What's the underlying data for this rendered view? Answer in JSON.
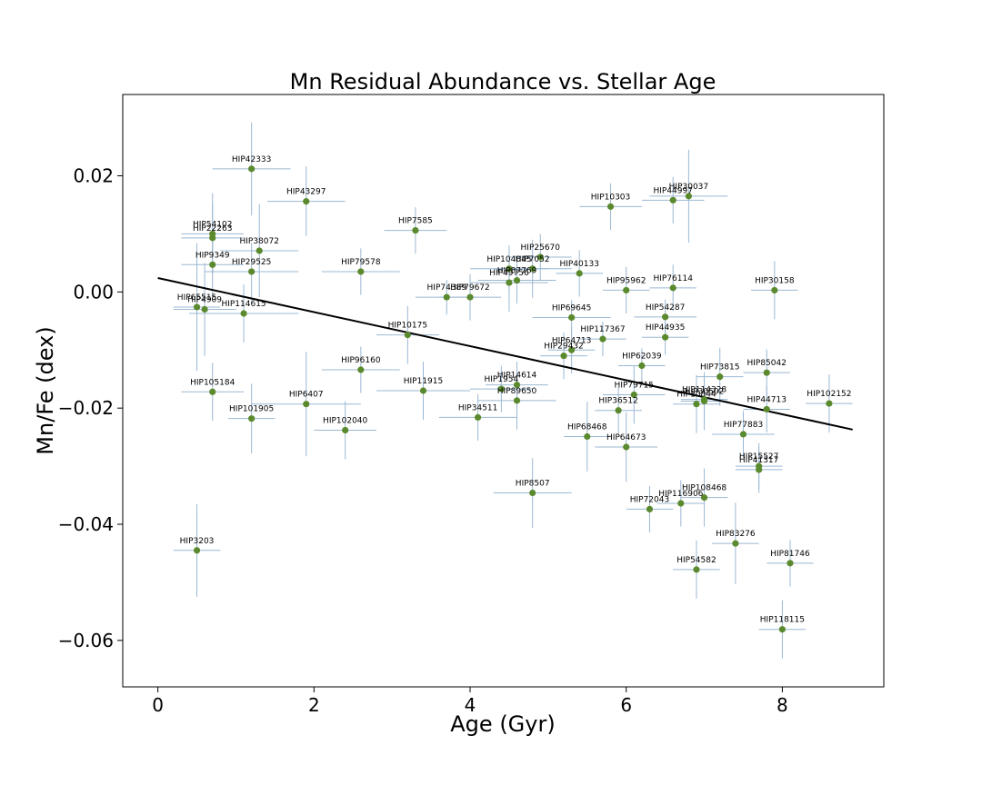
{
  "chart_data": {
    "type": "scatter",
    "title": "Mn Residual Abundance vs. Stellar Age",
    "xlabel": "Age (Gyr)",
    "ylabel": "Mn/Fe (dex)",
    "xlim": [
      -0.45,
      9.3
    ],
    "ylim": [
      -0.068,
      0.034
    ],
    "xticks": [
      0,
      2,
      4,
      6,
      8
    ],
    "yticks": [
      -0.06,
      -0.04,
      -0.02,
      0.0,
      0.02
    ],
    "ytick_labels": [
      "−0.06",
      "−0.04",
      "−0.02",
      "0.00",
      "0.02"
    ],
    "grid": false,
    "colors": {
      "point": "#5b8a2e",
      "errorbar": "#9bb8d3",
      "fit": "#000000"
    },
    "fit_line": {
      "x": [
        0.0,
        8.9
      ],
      "y": [
        0.0024,
        -0.0237
      ]
    },
    "points": [
      {
        "name": "HIP42333",
        "x": 1.2,
        "y": 0.0212,
        "xerr": 0.5,
        "yerr": 0.008
      },
      {
        "name": "HIP43297",
        "x": 1.9,
        "y": 0.0156,
        "xerr": 0.5,
        "yerr": 0.006
      },
      {
        "name": "HIP54102",
        "x": 0.7,
        "y": 0.01,
        "xerr": 0.4,
        "yerr": 0.007
      },
      {
        "name": "HIP22263",
        "x": 0.7,
        "y": 0.0093,
        "xerr": 0.4,
        "yerr": 0.006
      },
      {
        "name": "HIP38072",
        "x": 1.3,
        "y": 0.0071,
        "xerr": 0.5,
        "yerr": 0.008
      },
      {
        "name": "HIP7585",
        "x": 3.3,
        "y": 0.0106,
        "xerr": 0.4,
        "yerr": 0.004
      },
      {
        "name": "HIP9349",
        "x": 0.7,
        "y": 0.0047,
        "xerr": 0.4,
        "yerr": 0.006
      },
      {
        "name": "HIP29525",
        "x": 1.2,
        "y": 0.0035,
        "xerr": 0.6,
        "yerr": 0.005
      },
      {
        "name": "HIP79578",
        "x": 2.6,
        "y": 0.0035,
        "xerr": 0.5,
        "yerr": 0.004
      },
      {
        "name": "HIP25670",
        "x": 4.9,
        "y": 0.006,
        "xerr": 0.4,
        "yerr": 0.004
      },
      {
        "name": "HIP104045",
        "x": 4.5,
        "y": 0.004,
        "xerr": 0.5,
        "yerr": 0.004
      },
      {
        "name": "HIP7052",
        "x": 4.8,
        "y": 0.004,
        "xerr": 0.5,
        "yerr": 0.005
      },
      {
        "name": "HIP49756",
        "x": 4.5,
        "y": 0.0016,
        "xerr": 0.5,
        "yerr": 0.005
      },
      {
        "name": "HIP87769",
        "x": 4.6,
        "y": 0.002,
        "xerr": 0.5,
        "yerr": 0.004
      },
      {
        "name": "HIP40133",
        "x": 5.4,
        "y": 0.0032,
        "xerr": 0.3,
        "yerr": 0.004
      },
      {
        "name": "HIP74389",
        "x": 3.7,
        "y": -0.0009,
        "xerr": 0.4,
        "yerr": 0.003
      },
      {
        "name": "HIP79672",
        "x": 4.0,
        "y": -0.0009,
        "xerr": 0.4,
        "yerr": 0.004
      },
      {
        "name": "HIP10303",
        "x": 5.8,
        "y": 0.0147,
        "xerr": 0.4,
        "yerr": 0.004
      },
      {
        "name": "HIP44997",
        "x": 6.6,
        "y": 0.0158,
        "xerr": 0.4,
        "yerr": 0.004
      },
      {
        "name": "HIP30037",
        "x": 6.8,
        "y": 0.0165,
        "xerr": 0.5,
        "yerr": 0.008
      },
      {
        "name": "HIP95962",
        "x": 6.0,
        "y": 0.0003,
        "xerr": 0.3,
        "yerr": 0.004
      },
      {
        "name": "HIP76114",
        "x": 6.6,
        "y": 0.0007,
        "xerr": 0.3,
        "yerr": 0.004
      },
      {
        "name": "HIP30158",
        "x": 7.9,
        "y": 0.0003,
        "xerr": 0.3,
        "yerr": 0.005
      },
      {
        "name": "HIP65515",
        "x": 0.5,
        "y": -0.0026,
        "xerr": 0.3,
        "yerr": 0.011
      },
      {
        "name": "HIP4909",
        "x": 0.6,
        "y": -0.003,
        "xerr": 0.4,
        "yerr": 0.008
      },
      {
        "name": "HIP114615",
        "x": 1.1,
        "y": -0.0037,
        "xerr": 0.7,
        "yerr": 0.005
      },
      {
        "name": "HIP10175",
        "x": 3.2,
        "y": -0.0074,
        "xerr": 0.4,
        "yerr": 0.005
      },
      {
        "name": "HIP69645",
        "x": 5.3,
        "y": -0.0044,
        "xerr": 0.5,
        "yerr": 0.003
      },
      {
        "name": "HIP54287",
        "x": 6.5,
        "y": -0.0043,
        "xerr": 0.4,
        "yerr": 0.003
      },
      {
        "name": "HIP117367",
        "x": 5.7,
        "y": -0.0081,
        "xerr": 0.3,
        "yerr": 0.003
      },
      {
        "name": "HIP44935",
        "x": 6.5,
        "y": -0.0078,
        "xerr": 0.3,
        "yerr": 0.003
      },
      {
        "name": "HIP64713",
        "x": 5.3,
        "y": -0.01,
        "xerr": 0.3,
        "yerr": 0.004
      },
      {
        "name": "HIP29432",
        "x": 5.2,
        "y": -0.011,
        "xerr": 0.3,
        "yerr": 0.004
      },
      {
        "name": "HIP96160",
        "x": 2.6,
        "y": -0.0134,
        "xerr": 0.5,
        "yerr": 0.004
      },
      {
        "name": "HIP62039",
        "x": 6.2,
        "y": -0.0127,
        "xerr": 0.3,
        "yerr": 0.003
      },
      {
        "name": "HIP73815",
        "x": 7.2,
        "y": -0.0146,
        "xerr": 0.3,
        "yerr": 0.005
      },
      {
        "name": "HIP85042",
        "x": 7.8,
        "y": -0.0139,
        "xerr": 0.3,
        "yerr": 0.004
      },
      {
        "name": "HIP105184",
        "x": 0.7,
        "y": -0.0172,
        "xerr": 0.4,
        "yerr": 0.005
      },
      {
        "name": "HIP11915",
        "x": 3.4,
        "y": -0.017,
        "xerr": 0.6,
        "yerr": 0.005
      },
      {
        "name": "HIP14614",
        "x": 4.6,
        "y": -0.016,
        "xerr": 0.4,
        "yerr": 0.004
      },
      {
        "name": "HIP1954",
        "x": 4.4,
        "y": -0.0167,
        "xerr": 0.4,
        "yerr": 0.004
      },
      {
        "name": "HIP89650",
        "x": 4.6,
        "y": -0.0187,
        "xerr": 0.5,
        "yerr": 0.005
      },
      {
        "name": "HIP79715",
        "x": 6.1,
        "y": -0.0177,
        "xerr": 0.4,
        "yerr": 0.005
      },
      {
        "name": "HIP114328",
        "x": 7.0,
        "y": -0.0185,
        "xerr": 0.3,
        "yerr": 0.004
      },
      {
        "name": "HIP30502",
        "x": 7.0,
        "y": -0.0188,
        "xerr": 0.3,
        "yerr": 0.005
      },
      {
        "name": "HIP10844",
        "x": 6.9,
        "y": -0.0193,
        "xerr": 0.3,
        "yerr": 0.005
      },
      {
        "name": "HIP44713",
        "x": 7.8,
        "y": -0.0202,
        "xerr": 0.3,
        "yerr": 0.004
      },
      {
        "name": "HIP102152",
        "x": 8.6,
        "y": -0.0192,
        "xerr": 0.3,
        "yerr": 0.005
      },
      {
        "name": "HIP6407",
        "x": 1.9,
        "y": -0.0193,
        "xerr": 0.7,
        "yerr": 0.009
      },
      {
        "name": "HIP101905",
        "x": 1.2,
        "y": -0.0218,
        "xerr": 0.3,
        "yerr": 0.006
      },
      {
        "name": "HIP102040",
        "x": 2.4,
        "y": -0.0238,
        "xerr": 0.4,
        "yerr": 0.005
      },
      {
        "name": "HIP34511",
        "x": 4.1,
        "y": -0.0216,
        "xerr": 0.5,
        "yerr": 0.004
      },
      {
        "name": "HIP36512",
        "x": 5.9,
        "y": -0.0204,
        "xerr": 0.3,
        "yerr": 0.004
      },
      {
        "name": "HIP68468",
        "x": 5.5,
        "y": -0.0249,
        "xerr": 0.3,
        "yerr": 0.006
      },
      {
        "name": "HIP64673",
        "x": 6.0,
        "y": -0.0267,
        "xerr": 0.4,
        "yerr": 0.006
      },
      {
        "name": "HIP77883",
        "x": 7.5,
        "y": -0.0245,
        "xerr": 0.4,
        "yerr": 0.004
      },
      {
        "name": "HIP15527",
        "x": 7.7,
        "y": -0.03,
        "xerr": 0.3,
        "yerr": 0.004
      },
      {
        "name": "HIP41317",
        "x": 7.7,
        "y": -0.0306,
        "xerr": 0.3,
        "yerr": 0.004
      },
      {
        "name": "HIP8507",
        "x": 4.8,
        "y": -0.0346,
        "xerr": 0.5,
        "yerr": 0.006
      },
      {
        "name": "HIP72043",
        "x": 6.3,
        "y": -0.0374,
        "xerr": 0.3,
        "yerr": 0.004
      },
      {
        "name": "HIP116906",
        "x": 6.7,
        "y": -0.0364,
        "xerr": 0.3,
        "yerr": 0.004
      },
      {
        "name": "HIP108468",
        "x": 7.0,
        "y": -0.0354,
        "xerr": 0.3,
        "yerr": 0.005
      },
      {
        "name": "HIP83276",
        "x": 7.4,
        "y": -0.0433,
        "xerr": 0.3,
        "yerr": 0.007
      },
      {
        "name": "HIP81746",
        "x": 8.1,
        "y": -0.0467,
        "xerr": 0.3,
        "yerr": 0.004
      },
      {
        "name": "HIP54582",
        "x": 6.9,
        "y": -0.0478,
        "xerr": 0.3,
        "yerr": 0.005
      },
      {
        "name": "HIP3203",
        "x": 0.5,
        "y": -0.0445,
        "xerr": 0.3,
        "yerr": 0.008
      },
      {
        "name": "HIP118115",
        "x": 8.0,
        "y": -0.0581,
        "xerr": 0.3,
        "yerr": 0.005
      }
    ]
  }
}
